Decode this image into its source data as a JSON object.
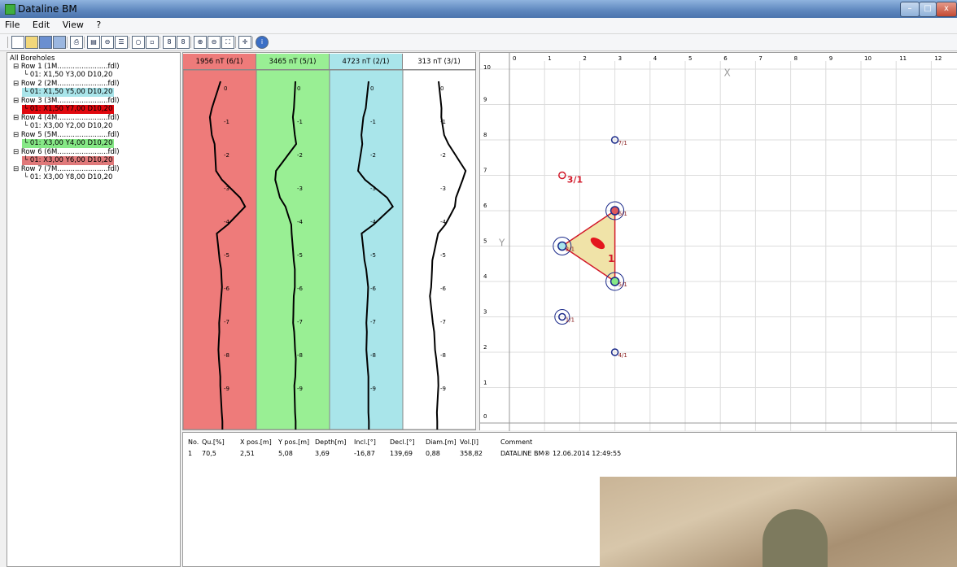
{
  "window": {
    "title": "Dataline BM",
    "minimize": "–",
    "maximize": "□",
    "close": "x"
  },
  "menu": [
    "File",
    "Edit",
    "View",
    "?"
  ],
  "toolbar_icons": [
    "new-icon",
    "open-icon",
    "save-icon",
    "export-icon",
    "print-icon",
    "boreholes-icon",
    "link-icon",
    "grid-icon",
    "circle-icon",
    "square-icon",
    "calc-icon",
    "calc2-icon",
    "zoom-in-icon",
    "zoom-out-icon",
    "zoom-fit-icon",
    "crosshair-icon",
    "info-icon"
  ],
  "tree": {
    "root": "All Boreholes",
    "rows": [
      {
        "label": "⊟ Row 1 (1M.......................fdl)",
        "child": "└ 01: X1,50 Y3,00 D10,20",
        "highlight": ""
      },
      {
        "label": "⊟ Row 2 (2M.......................fdl)",
        "child": "└ 01: X1,50 Y5,00 D10,20",
        "highlight": "#a9e5ea"
      },
      {
        "label": "⊟ Row 3 (3M.......................fdl)",
        "child": "└ 01: X1,50 Y7,00 D10,20",
        "highlight": "#e0080e"
      },
      {
        "label": "⊟ Row 4 (4M.......................fdl)",
        "child": "└ 01: X3,00 Y2,00 D10,20",
        "highlight": ""
      },
      {
        "label": "⊟ Row 5 (5M.......................fdl)",
        "child": "└ 01: X3,00 Y4,00 D10,20",
        "highlight": "#86e886"
      },
      {
        "label": "⊟ Row 6 (6M.......................fdl)",
        "child": "└ 01: X3,00 Y6,00 D10,20",
        "highlight": "#e0797a"
      },
      {
        "label": "⊟ Row 7 (7M.......................fdl)",
        "child": "└ 01: X3,00 Y8,00 D10,20",
        "highlight": ""
      }
    ]
  },
  "logs": {
    "tracks": [
      {
        "header": "1956 nT (6/1)",
        "color": "#ee7b7a"
      },
      {
        "header": "3465 nT (5/1)",
        "color": "#99ef94"
      },
      {
        "header": "4723 nT (2/1)",
        "color": "#a9e5ea"
      },
      {
        "header": "313 nT (3/1)",
        "color": "#ffffff"
      }
    ],
    "depth_labels": [
      "0",
      "-1",
      "-2",
      "-3",
      "-4",
      "-5",
      "-6",
      "-7",
      "-8",
      "-9"
    ]
  },
  "map": {
    "x_ticks": [
      "0",
      "1",
      "2",
      "3",
      "4",
      "5",
      "6",
      "7",
      "8",
      "9",
      "10",
      "11",
      "12"
    ],
    "y_ticks": [
      "10",
      "9",
      "8",
      "7",
      "6",
      "5",
      "4",
      "3",
      "2",
      "1",
      "0"
    ],
    "x_axis_label": "X",
    "y_axis_label": "Y",
    "boreholes": [
      {
        "label": "1/1",
        "x": 1.5,
        "y": 3.0,
        "style": "ring-blue"
      },
      {
        "label": "2/1",
        "x": 1.5,
        "y": 5.0,
        "style": "cyan"
      },
      {
        "label": "3/1",
        "x": 1.5,
        "y": 7.0,
        "style": "red-open"
      },
      {
        "label": "4/1",
        "x": 3.0,
        "y": 2.0,
        "style": "blue-open"
      },
      {
        "label": "5/1",
        "x": 3.0,
        "y": 4.0,
        "style": "green"
      },
      {
        "label": "6/1",
        "x": 3.0,
        "y": 6.0,
        "style": "red"
      },
      {
        "label": "7/1",
        "x": 3.0,
        "y": 8.0,
        "style": "blue-open"
      }
    ],
    "triangle_label": "1",
    "object": {
      "x": 2.51,
      "y": 5.08
    }
  },
  "table": {
    "headers": [
      "No.",
      "Qu.[%]",
      "X pos.[m]",
      "Y pos.[m]",
      "Depth[m]",
      "Incl.[°]",
      "Decl.[°]",
      "Diam.[m]",
      "Vol.[l]",
      "Comment"
    ],
    "rows": [
      [
        "1",
        "70,5",
        "2,51",
        "5,08",
        "3,69",
        "-16,87",
        "139,69",
        "0,88",
        "358,82",
        "DATALINE BM® 12.06.2014 12:49:55"
      ]
    ]
  }
}
